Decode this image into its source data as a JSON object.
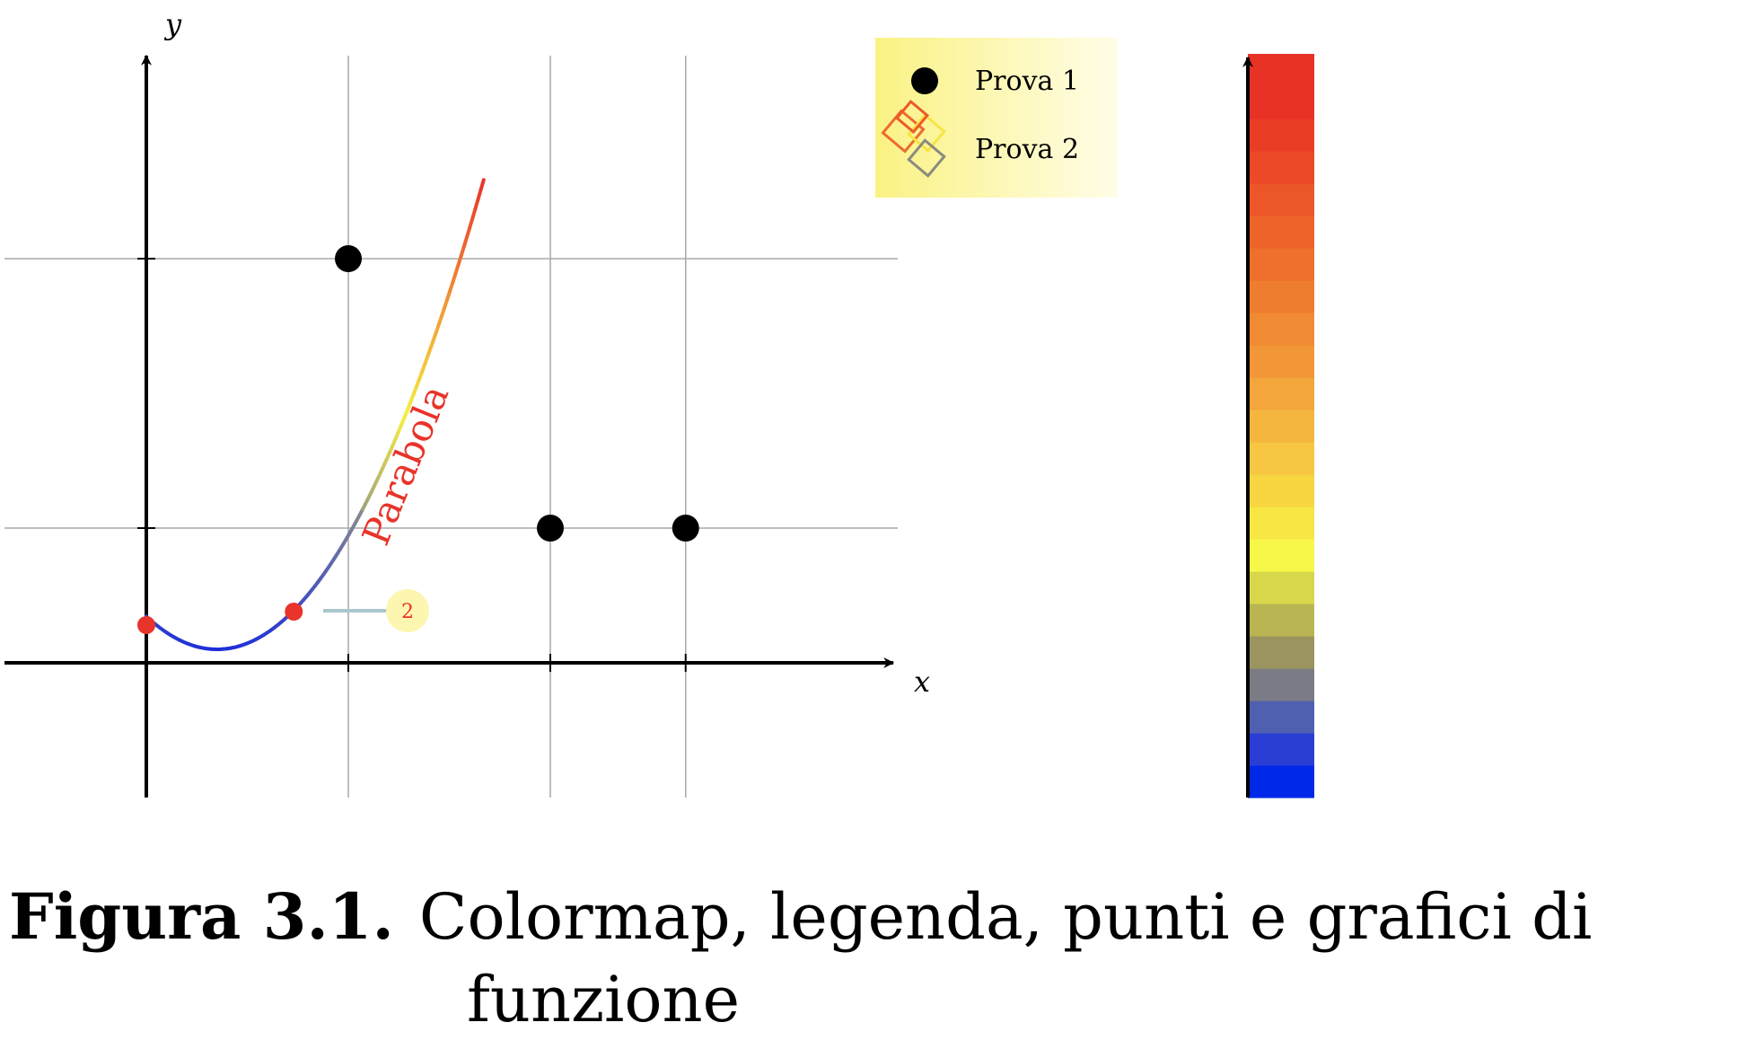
{
  "chart_data": {
    "type": "line",
    "xlabel": "x",
    "ylabel": "y",
    "xlim": [
      -0.7,
      3.7
    ],
    "ylim": [
      -0.5,
      2.3
    ],
    "grid": true,
    "xgrid": [
      1,
      2,
      2.67
    ],
    "ygrid": [
      0.5,
      1.5
    ],
    "function": {
      "label": "Parabola",
      "expression": "(x - 0.35)^2 + 0.05",
      "domain": [
        0,
        1.67
      ]
    },
    "series": [
      {
        "name": "Prova 1",
        "points": [
          [
            1,
            1.5
          ],
          [
            2,
            0.5
          ],
          [
            2.67,
            0.5
          ]
        ],
        "color": "#000000"
      }
    ],
    "highlight_points": [
      [
        0,
        0.14
      ],
      [
        0.73,
        0.19
      ]
    ],
    "marker_label": "2",
    "legend": {
      "position": "top-right",
      "entries": [
        {
          "label": "Prova 1",
          "icon": "filled-circle-icon"
        },
        {
          "label": "Prova 2",
          "icon": "colored-squares-icon"
        }
      ]
    },
    "colormap": {
      "orientation": "vertical",
      "colors": [
        "#0028e8",
        "#2a3ed6",
        "#5060b0",
        "#7b7b85",
        "#9b945f",
        "#b9b553",
        "#d8d64a",
        "#f7f74a",
        "#f7e643",
        "#f7d642",
        "#f7c642",
        "#f5b640",
        "#f3a63c",
        "#f19737",
        "#f08a33",
        "#ef7d2f",
        "#ee702c",
        "#ed632a",
        "#ec5628",
        "#eb4927",
        "#ea3d26",
        "#e83226",
        "#e83226"
      ]
    }
  },
  "caption": {
    "label": "Figura 3.1.",
    "text_line1": "Colormap, legenda, punti e grafici di",
    "text_line2": "funzione"
  },
  "colors": {
    "function_low": "#1f2fd8",
    "function_mid": "#f7ef3f",
    "function_high": "#e8342a",
    "grid": "#a8a8a8",
    "legend_bg": "#fdf8a0"
  }
}
